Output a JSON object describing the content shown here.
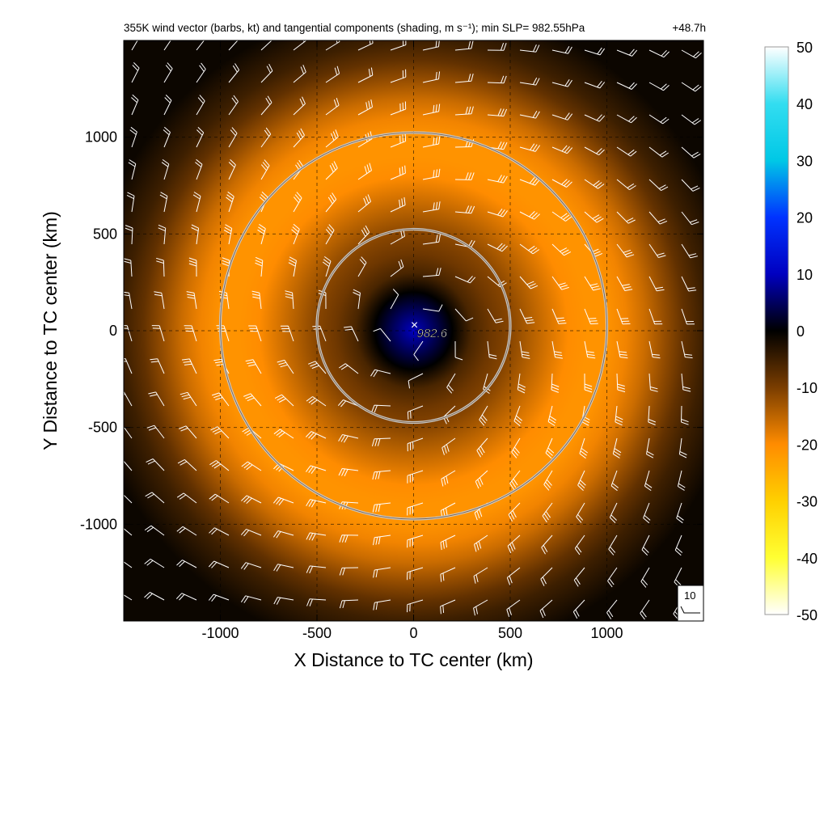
{
  "title": "355K wind vector (barbs, kt) and tangential components (shading, m s⁻¹); min SLP= 982.55hPa",
  "forecast_hour": "+48.7h",
  "center_marker": {
    "symbol": "×",
    "label": "982.6"
  },
  "barb_key": {
    "label": "10"
  },
  "colors": {
    "background": "#ffffff",
    "axis": "#000000",
    "barb": "#ffffff",
    "ring": "#c8c8c8"
  },
  "chart_data": {
    "type": "heatmap",
    "xlabel": "X Distance to TC center (km)",
    "ylabel": "Y Distance to TC center (km)",
    "xlim": [
      -1500,
      1500
    ],
    "ylim": [
      -1500,
      1500
    ],
    "xticks": [
      -1000,
      -500,
      0,
      500,
      1000
    ],
    "yticks": [
      -1000,
      -500,
      0,
      500,
      1000
    ],
    "grid": "dashed at ticks",
    "rings_km": [
      500,
      1000
    ],
    "ring_center_km": [
      0,
      25
    ],
    "min_slp_hpa": 982.55,
    "field": {
      "description_units": "m s^-1",
      "radial_profile_km": [
        0,
        100,
        200,
        300,
        400,
        500,
        600,
        700,
        800,
        900,
        1000,
        1100,
        1200,
        1300,
        1400,
        1500,
        1700
      ],
      "radial_profile_value": [
        10,
        5,
        0,
        -6,
        -9,
        -11,
        -14,
        -17,
        -20,
        -21,
        -21,
        -19,
        -16,
        -12,
        -8,
        -5,
        -1
      ]
    },
    "colorbar": {
      "ticks": [
        50,
        40,
        30,
        20,
        10,
        0,
        -10,
        -20,
        -30,
        -40,
        -50
      ],
      "range": [
        -50,
        50
      ],
      "stops": [
        {
          "v": 50,
          "c": "#ffffff"
        },
        {
          "v": 40,
          "c": "#33ddf0"
        },
        {
          "v": 30,
          "c": "#00c8e6"
        },
        {
          "v": 20,
          "c": "#0033ff"
        },
        {
          "v": 10,
          "c": "#0000c0"
        },
        {
          "v": 0,
          "c": "#000000"
        },
        {
          "v": -10,
          "c": "#7a3d00"
        },
        {
          "v": -20,
          "c": "#ff8c00"
        },
        {
          "v": -30,
          "c": "#ffd000"
        },
        {
          "v": -40,
          "c": "#ffff33"
        },
        {
          "v": -50,
          "c": "#ffffff"
        }
      ]
    }
  }
}
